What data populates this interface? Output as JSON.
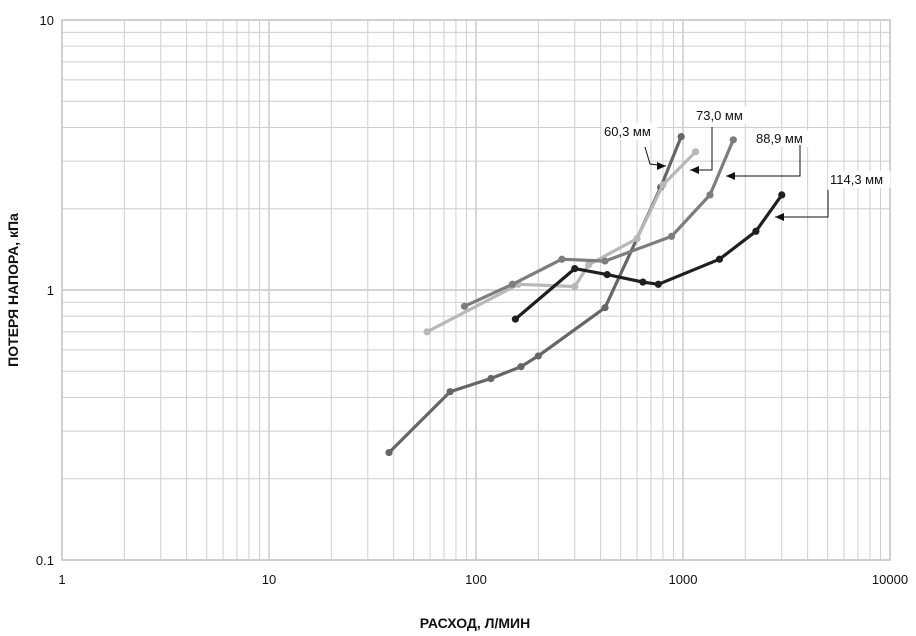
{
  "chart_data": {
    "type": "line",
    "xlabel": "РАСХОД, Л/МИН",
    "ylabel": "ПОТЕРЯ НАПОРА, кПа",
    "x_scale": "log",
    "y_scale": "log",
    "xlim": [
      1,
      10000
    ],
    "ylim": [
      0.1,
      10
    ],
    "x_ticks": [
      "1",
      "10",
      "100",
      "1000",
      "10000"
    ],
    "y_ticks": [
      "0.1",
      "1",
      "10"
    ],
    "grid": true,
    "series": [
      {
        "name": "60,3 мм",
        "color": "#666666",
        "x": [
          38,
          75,
          118,
          165,
          200,
          420,
          780,
          980
        ],
        "y": [
          0.25,
          0.42,
          0.47,
          0.52,
          0.57,
          0.86,
          2.4,
          3.7
        ]
      },
      {
        "name": "73,0 мм",
        "color": "#b8b8b8",
        "x": [
          58,
          160,
          300,
          350,
          600,
          800,
          1150
        ],
        "y": [
          0.7,
          1.05,
          1.03,
          1.24,
          1.55,
          2.45,
          3.25
        ]
      },
      {
        "name": "88,9 мм",
        "color": "#7d7d7d",
        "x": [
          88,
          150,
          260,
          420,
          880,
          1350,
          1750
        ],
        "y": [
          0.87,
          1.05,
          1.3,
          1.28,
          1.58,
          2.25,
          3.6
        ]
      },
      {
        "name": "114,3 мм",
        "color": "#1f1f1f",
        "x": [
          155,
          300,
          430,
          640,
          760,
          1500,
          2250,
          3000
        ],
        "y": [
          0.78,
          1.2,
          1.14,
          1.07,
          1.05,
          1.3,
          1.65,
          2.25
        ]
      }
    ]
  }
}
